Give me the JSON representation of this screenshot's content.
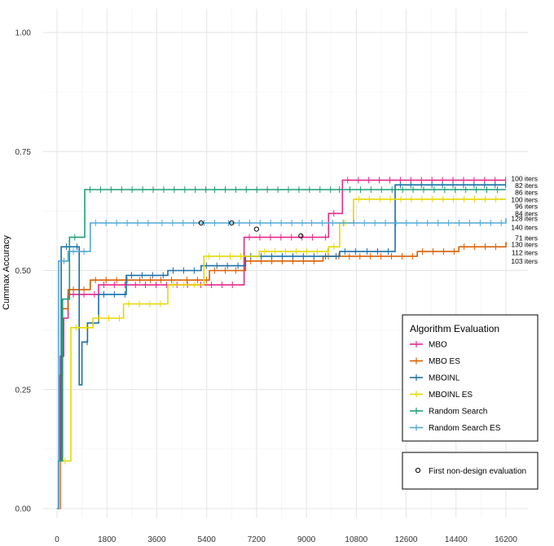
{
  "chart_data": {
    "type": "line",
    "title": "",
    "xlabel": "",
    "ylabel": "Cummax Accuracy",
    "xlim": [
      -500,
      17000
    ],
    "ylim": [
      -0.02,
      1.05
    ],
    "x_ticks": [
      "0",
      "1800",
      "3600",
      "5400",
      "7200",
      "9000",
      "10800",
      "12600",
      "14400",
      "16200"
    ],
    "y_ticks": [
      "0.00",
      "0.25",
      "0.50",
      "0.75",
      "1.00"
    ],
    "grid": true,
    "legend": {
      "title": "Algorithm Evaluation",
      "position": "right",
      "entries": [
        "MBO",
        "MBO ES",
        "MBOINL",
        "MBOINL ES",
        "Random Search",
        "Random Search ES"
      ]
    },
    "marker_legend": {
      "label": "First non-design evaluation"
    },
    "end_labels": [
      {
        "text": "100 iters",
        "y": 0.693
      },
      {
        "text": "82 iters",
        "y": 0.679
      },
      {
        "text": "86 iters",
        "y": 0.664
      },
      {
        "text": "100 iters",
        "y": 0.649
      },
      {
        "text": "96 iters",
        "y": 0.635
      },
      {
        "text": "84 iters",
        "y": 0.62
      },
      {
        "text": "128 iters",
        "y": 0.609
      },
      {
        "text": "140 iters",
        "y": 0.591
      },
      {
        "text": "71 iters",
        "y": 0.568
      },
      {
        "text": "130 iters",
        "y": 0.555
      },
      {
        "text": "112 iters",
        "y": 0.538
      },
      {
        "text": "103 iters",
        "y": 0.52
      }
    ],
    "series": [
      {
        "name": "MBO",
        "color": "#E7298A",
        "points": [
          [
            0,
            0
          ],
          [
            120,
            0.32
          ],
          [
            240,
            0.4
          ],
          [
            400,
            0.45
          ],
          [
            1500,
            0.47
          ],
          [
            3000,
            0.47
          ],
          [
            5000,
            0.47
          ],
          [
            6700,
            0.47
          ],
          [
            6750,
            0.57
          ],
          [
            9500,
            0.57
          ],
          [
            9800,
            0.62
          ],
          [
            10300,
            0.69
          ],
          [
            16200,
            0.69
          ]
        ]
      },
      {
        "name": "MBO ES",
        "color": "#D95F02",
        "points": [
          [
            0,
            0
          ],
          [
            80,
            0.28
          ],
          [
            200,
            0.42
          ],
          [
            400,
            0.46
          ],
          [
            1200,
            0.48
          ],
          [
            2800,
            0.48
          ],
          [
            4500,
            0.48
          ],
          [
            5200,
            0.48
          ],
          [
            5500,
            0.5
          ],
          [
            6800,
            0.52
          ],
          [
            9600,
            0.53
          ],
          [
            13000,
            0.54
          ],
          [
            14500,
            0.55
          ],
          [
            16200,
            0.56
          ]
        ]
      },
      {
        "name": "MBOINL",
        "color": "#1B6FA8",
        "points": [
          [
            0,
            0
          ],
          [
            60,
            0.1
          ],
          [
            150,
            0.55
          ],
          [
            800,
            0.26
          ],
          [
            900,
            0.35
          ],
          [
            1100,
            0.39
          ],
          [
            1500,
            0.45
          ],
          [
            2500,
            0.49
          ],
          [
            4000,
            0.5
          ],
          [
            5200,
            0.51
          ],
          [
            6800,
            0.53
          ],
          [
            9500,
            0.53
          ],
          [
            10200,
            0.54
          ],
          [
            11000,
            0.54
          ],
          [
            12200,
            0.68
          ],
          [
            16200,
            0.68
          ]
        ]
      },
      {
        "name": "MBOINL ES",
        "color": "#E6D800",
        "points": [
          [
            0,
            0
          ],
          [
            100,
            0.1
          ],
          [
            500,
            0.38
          ],
          [
            1300,
            0.4
          ],
          [
            2400,
            0.43
          ],
          [
            4000,
            0.47
          ],
          [
            5300,
            0.53
          ],
          [
            7300,
            0.54
          ],
          [
            9800,
            0.55
          ],
          [
            10200,
            0.6
          ],
          [
            10700,
            0.65
          ],
          [
            16200,
            0.65
          ]
        ]
      },
      {
        "name": "Random Search",
        "color": "#1B9E77",
        "points": [
          [
            0,
            0
          ],
          [
            50,
            0.1
          ],
          [
            200,
            0.44
          ],
          [
            450,
            0.57
          ],
          [
            1000,
            0.67
          ],
          [
            5500,
            0.67
          ],
          [
            10000,
            0.67
          ],
          [
            16200,
            0.67
          ]
        ]
      },
      {
        "name": "Random Search ES",
        "color": "#4FA8D8",
        "points": [
          [
            0,
            0
          ],
          [
            60,
            0.52
          ],
          [
            400,
            0.54
          ],
          [
            1200,
            0.6
          ],
          [
            3600,
            0.6
          ],
          [
            6000,
            0.6
          ],
          [
            9000,
            0.6
          ],
          [
            16200,
            0.61
          ]
        ]
      }
    ],
    "first_nondesign_points": [
      [
        5200,
        0.6
      ],
      [
        6300,
        0.6
      ],
      [
        7200,
        0.587
      ],
      [
        8800,
        0.573
      ]
    ]
  }
}
